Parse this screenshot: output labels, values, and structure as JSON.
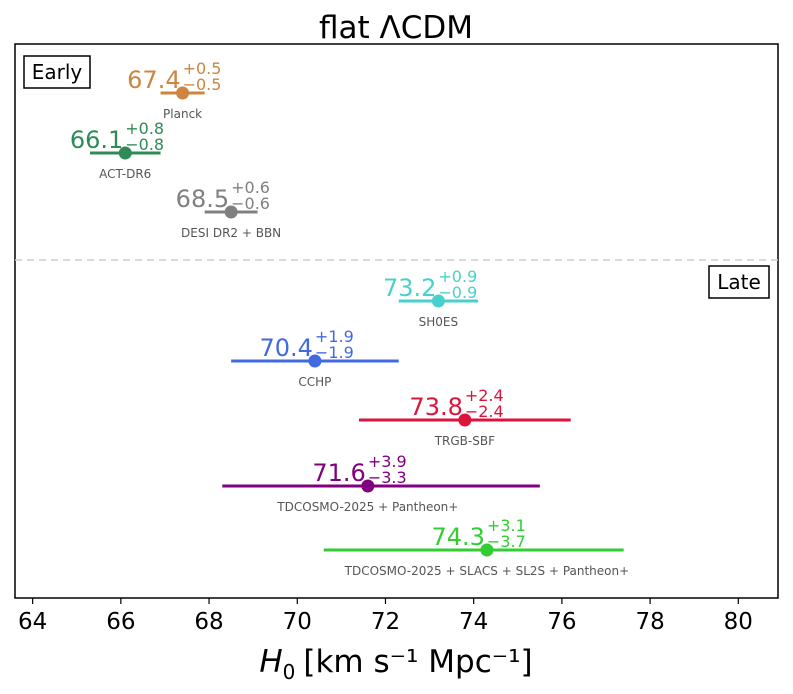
{
  "chart_data": {
    "type": "scatter",
    "title": "flat ΛCDM",
    "xlabel_symbol": "H",
    "xlabel_sub": "0",
    "xlabel_units": "[km s⁻¹ Mpc⁻¹]",
    "xlim": [
      63.6,
      80.9
    ],
    "xticks": [
      64,
      66,
      68,
      70,
      72,
      74,
      76,
      78,
      80
    ],
    "xtick_labels": [
      "64",
      "66",
      "68",
      "70",
      "72",
      "74",
      "76",
      "78",
      "80"
    ],
    "groups": [
      {
        "name": "Early",
        "position": "top-left"
      },
      {
        "name": "Late",
        "position": "right"
      }
    ],
    "points": [
      {
        "label": "Planck",
        "group": "Early",
        "value": 67.4,
        "value_text": "67.4",
        "plus": "+0.5",
        "minus": "−0.5",
        "err_plus": 0.5,
        "err_minus": 0.5,
        "color": "#cd853f"
      },
      {
        "label": "ACT-DR6",
        "group": "Early",
        "value": 66.1,
        "value_text": "66.1",
        "plus": "+0.8",
        "minus": "−0.8",
        "err_plus": 0.8,
        "err_minus": 0.8,
        "color": "#2e8b57"
      },
      {
        "label": "DESI DR2 + BBN",
        "group": "Early",
        "value": 68.5,
        "value_text": "68.5",
        "plus": "+0.6",
        "minus": "−0.6",
        "err_plus": 0.6,
        "err_minus": 0.6,
        "color": "#808080"
      },
      {
        "label": "SH0ES",
        "group": "Late",
        "value": 73.2,
        "value_text": "73.2",
        "plus": "+0.9",
        "minus": "−0.9",
        "err_plus": 0.9,
        "err_minus": 0.9,
        "color": "#48d1cc"
      },
      {
        "label": "CCHP",
        "group": "Late",
        "value": 70.4,
        "value_text": "70.4",
        "plus": "+1.9",
        "minus": "−1.9",
        "err_plus": 1.9,
        "err_minus": 1.9,
        "color": "#4169e1"
      },
      {
        "label": "TRGB-SBF",
        "group": "Late",
        "value": 73.8,
        "value_text": "73.8",
        "plus": "+2.4",
        "minus": "−2.4",
        "err_plus": 2.4,
        "err_minus": 2.4,
        "color": "#dc143c"
      },
      {
        "label": "TDCOSMO-2025 + Pantheon+",
        "group": "Late",
        "value": 71.6,
        "value_text": "71.6",
        "plus": "+3.9",
        "minus": "−3.3",
        "err_plus": 3.9,
        "err_minus": 3.3,
        "color": "#800080"
      },
      {
        "label": "TDCOSMO-2025 + SLACS + SL2S + Pantheon+",
        "group": "Late",
        "value": 74.3,
        "value_text": "74.3",
        "plus": "+3.1",
        "minus": "−3.7",
        "err_plus": 3.1,
        "err_minus": 3.7,
        "color": "#32cd32"
      }
    ]
  }
}
